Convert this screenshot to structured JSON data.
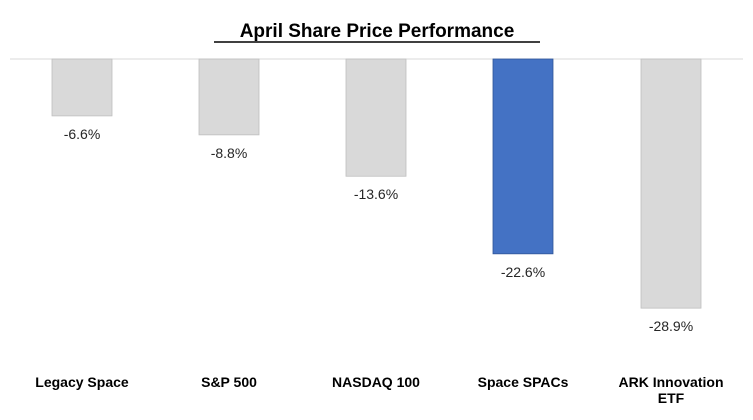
{
  "chart_data": {
    "type": "bar",
    "title": "April Share Price Performance",
    "xlabel": "",
    "ylabel": "",
    "categories": [
      "Legacy Space",
      "S&P 500",
      "NASDAQ 100",
      "Space SPACs",
      "ARK Innovation ETF"
    ],
    "category_lines": [
      [
        "Legacy Space"
      ],
      [
        "S&P 500"
      ],
      [
        "NASDAQ 100"
      ],
      [
        "Space SPACs"
      ],
      [
        "ARK Innovation",
        "ETF"
      ]
    ],
    "values": [
      -6.6,
      -8.8,
      -13.6,
      -22.6,
      -28.9
    ],
    "value_labels": [
      "-6.6%",
      "-8.8%",
      "-13.6%",
      "-22.6%",
      "-28.9%"
    ],
    "highlight_index": 3,
    "ylim": [
      -30,
      0
    ],
    "grid": false,
    "legend": "none",
    "colors": {
      "default": "#D9D9D9",
      "default_stroke": "#BFBFBF",
      "highlight": "#4472C4",
      "highlight_stroke": "#2F5597",
      "baseline": "#D9D9D9"
    }
  }
}
